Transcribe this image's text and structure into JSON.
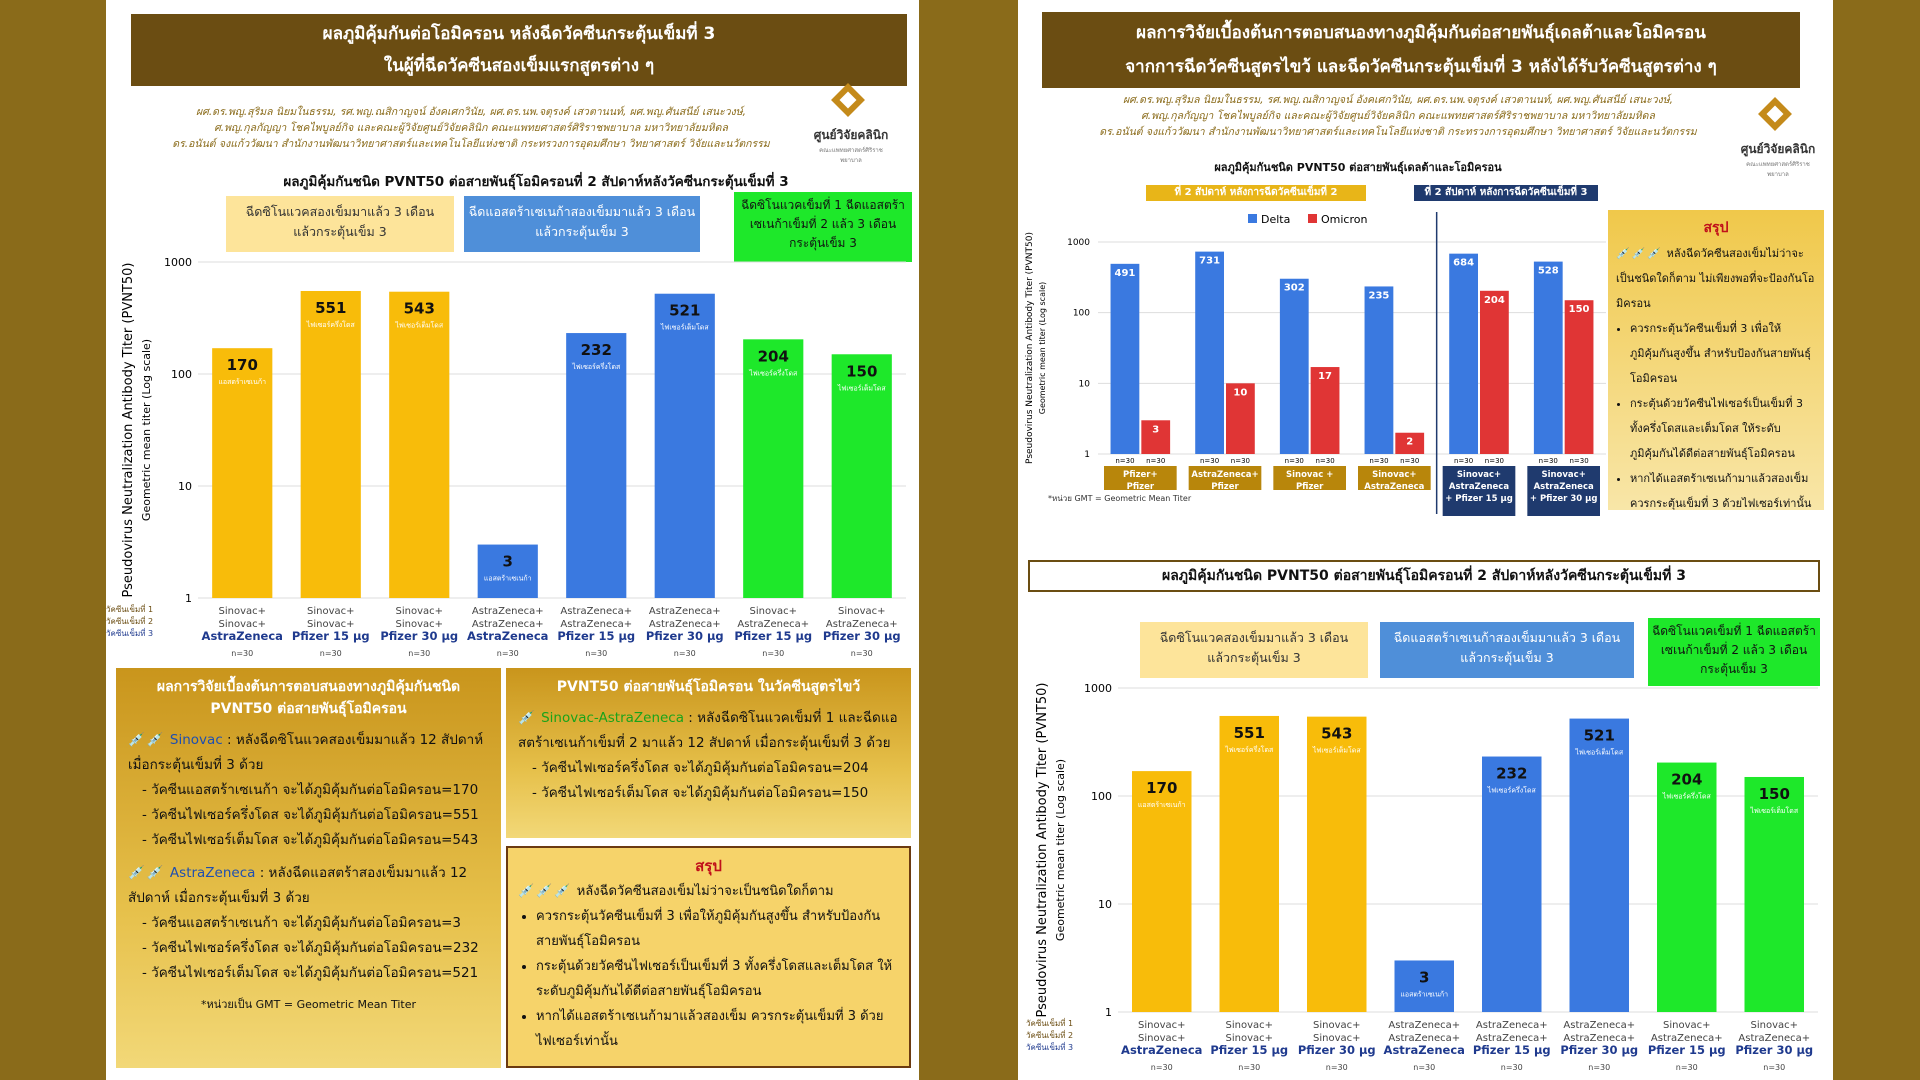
{
  "left": {
    "header": [
      "ผลภูมิคุ้มกันต่อโอมิครอน หลังฉีดวัคซีนกระตุ้นเข็มที่ 3",
      "ในผู้ที่ฉีดวัคซีนสองเข็มแรกสูตรต่าง ๆ"
    ],
    "authors": [
      "ผศ.ดร.พญ.สุริมล นิยมในธรรม, รศ.พญ.ณสิกาญจน์ อังคเศกวินัย, ผศ.ดร.นพ.จตุรงค์ เสวตานนท์, ผศ.พญ.ศันสนีย์ เสนะวงษ์,",
      "ศ.พญ.กุลกัญญา โชคไพบูลย์กิจ และคณะผู้วิจัยศูนย์วิจัยคลินิก คณะแพทยศาสตร์ศิริราชพยาบาล มหาวิทยาลัยมหิดล",
      "ดร.อนันต์ จงแก้ววัฒนา สำนักงานพัฒนาวิทยาศาสตร์และเทคโนโลยีแห่งชาติ กระทรวงการอุดมศึกษา วิทยาศาสตร์ วิจัยและนวัตกรรม"
    ],
    "logo": {
      "name": "ศูนย์วิจัยคลินิก",
      "sub": "คณะแพทยศาสตร์ศิริราชพยาบาล"
    },
    "summary1": {
      "title": "ผลการวิจัยเบื้องต้นการตอบสนองทางภูมิคุ้มกันชนิด PVNT50 ต่อสายพันธุ์โอมิครอน",
      "sinovac_name": "Sinovac",
      "sinovac_text": ": หลังฉีดซิโนแวคสองเข็มมาแล้ว 12 สัปดาห์ เมื่อกระตุ้นเข็มที่ 3 ด้วย",
      "sinovac_items": [
        "วัคซีนแอสตร้าเซเนก้า จะได้ภูมิคุ้มกันต่อโอมิครอน=170",
        "วัคซีนไฟเซอร์ครึ่งโดส จะได้ภูมิคุ้มกันต่อโอมิครอน=551",
        "วัคซีนไฟเซอร์เต็มโดส จะได้ภูมิคุ้มกันต่อโอมิครอน=543"
      ],
      "az_name": "AstraZeneca",
      "az_text": ": หลังฉีดแอสตร้าสองเข็มมาแล้ว 12 สัปดาห์ เมื่อกระตุ้นเข็มที่ 3 ด้วย",
      "az_items": [
        "วัคซีนแอสตร้าเซเนก้า จะได้ภูมิคุ้มกันต่อโอมิครอน=3",
        "วัคซีนไฟเซอร์ครึ่งโดส จะได้ภูมิคุ้มกันต่อโอมิครอน=232",
        "วัคซีนไฟเซอร์เต็มโดส จะได้ภูมิคุ้มกันต่อโอมิครอน=521"
      ],
      "unit_note": "*หน่วยเป็น GMT = Geometric Mean Titer"
    },
    "summary2": {
      "title": "PVNT50 ต่อสายพันธุ์โอมิครอน ในวัคซีนสูตรไขว้",
      "mix_name": "Sinovac-AstraZeneca",
      "mix_text": ": หลังฉีดซิโนแวคเข็มที่ 1 และฉีดแอสตร้าเซเนก้าเข็มที่ 2 มาแล้ว 12 สัปดาห์ เมื่อกระตุ้นเข็มที่ 3 ด้วย",
      "mix_items": [
        "วัคซีนไฟเซอร์ครึ่งโดส จะได้ภูมิคุ้มกันต่อโอมิครอน=204",
        "วัคซีนไฟเซอร์เต็มโดส จะได้ภูมิคุ้มกันต่อโอมิครอน=150"
      ]
    },
    "conclusion": {
      "title": "สรุป",
      "intro": "หลังฉีดวัคซีนสองเข็มไม่ว่าจะเป็นชนิดใดก็ตาม",
      "items": [
        "ควรกระตุ้นวัคซีนเข็มที่ 3 เพื่อให้ภูมิคุ้มกันสูงขึ้น สำหรับป้องกันสายพันธุ์โอมิครอน",
        "กระตุ้นด้วยวัคซีนไฟเซอร์เป็นเข็มที่ 3 ทั้งครึ่งโดสและเต็มโดส ให้ระดับภูมิคุ้มกันได้ดีต่อสายพันธุ์โอมิครอน",
        "หากได้แอสตร้าเซเนก้ามาแล้วสองเข็ม ควรกระตุ้นเข็มที่ 3 ด้วยไฟเซอร์เท่านั้น"
      ]
    }
  },
  "right": {
    "header": [
      "ผลการวิจัยเบื้องต้นการตอบสนองทางภูมิคุ้มกันต่อสายพันธุ์เดลต้าและโอมิครอน",
      "จากการฉีดวัคซีนสูตรไขว้ และฉีดวัคซีนกระตุ้นเข็มที่ 3 หลังได้รับวัคซีนสูตรต่าง ๆ"
    ],
    "authors": [
      "ผศ.ดร.พญ.สุริมล นิยมในธรรม, รศ.พญ.ณสิกาญจน์ อังคเศกวินัย, ผศ.ดร.นพ.จตุรงค์ เสวตานนท์, ผศ.พญ.ศันสนีย์ เสนะวงษ์,",
      "ศ.พญ.กุลกัญญา โชคไพบูลย์กิจ และคณะผู้วิจัยศูนย์วิจัยคลินิก คณะแพทยศาสตร์ศิริราชพยาบาล มหาวิทยาลัยมหิดล",
      "ดร.อนันต์ จงแก้ววัฒนา สำนักงานพัฒนาวิทยาศาสตร์และเทคโนโลยีแห่งชาติ กระทรวงการอุดมศึกษา วิทยาศาสตร์ วิจัยและนวัตกรรม"
    ],
    "tag_left": "ที่ 2 สัปดาห์ หลังการฉีดวัคซีนเข็มที่ 2",
    "tag_right": "ที่ 2 สัปดาห์ หลังการฉีดวัคซีนเข็มที่ 3",
    "note": "*หน่วย GMT = Geometric Mean Titer",
    "summary": {
      "title": "สรุป",
      "intro": "หลังฉีดวัคซีนสองเข็มไม่ว่าจะเป็นชนิดใดก็ตาม ไม่เพียงพอที่จะป้องกันโอมิครอน",
      "items": [
        "ควรกระตุ้นวัคซีนเข็มที่ 3 เพื่อให้ภูมิคุ้มกันสูงขึ้น สำหรับป้องกันสายพันธุ์โอมิครอน",
        "กระตุ้นด้วยวัคซีนไฟเซอร์เป็นเข็มที่ 3 ทั้งครึ่งโดสและเต็มโดส ให้ระดับภูมิคุ้มกันได้ดีต่อสายพันธุ์โอมิครอน",
        "หากได้แอสตร้าเซเนก้ามาแล้วสองเข็ม ควรกระตุ้นเข็มที่ 3 ด้วยไฟเซอร์เท่านั้น"
      ]
    },
    "section2_title": "ผลภูมิคุ้มกันชนิด PVNT50 ต่อสายพันธุ์โอมิครอนที่ 2 สัปดาห์หลังวัคซีนกระตุ้นเข็มที่ 3"
  },
  "groups": [
    "ฉีดซิโนแวคสองเข็มมาแล้ว 3 เดือน แล้วกระตุ้นเข็ม 3",
    "ฉีดแอสตร้าเซเนก้าสองเข็มมาแล้ว 3 เดือน แล้วกระตุ้นเข็ม 3",
    "ฉีดซิโนแวคเข็มที่ 1 ฉีดแอสตร้าเซเนก้าเข็มที่ 2 แล้ว 3 เดือน กระตุ้นเข็ม 3"
  ],
  "colors": {
    "yellow": "#f8bc0a",
    "blue": "#3a79e0",
    "green": "#1ee82a",
    "red": "#e03535",
    "brown": "#6b4d12"
  },
  "chart_data": [
    {
      "type": "bar",
      "title": "ผลภูมิคุ้มกันชนิด PVNT50 ต่อสายพันธุ์โอมิครอนที่ 2 สัปดาห์หลังวัคซีนกระตุ้นเข็มที่ 3",
      "ylabel": "Pseudovirus Neutralization Antibody Titer (PVNT50)",
      "ylabel2": "Geometric mean titer (Log scale)",
      "yscale": "log",
      "ylim": [
        1,
        1000
      ],
      "yticks": [
        "1",
        "10",
        "100",
        "1000"
      ],
      "row_labels": [
        "วัคซีนเข็มที่ 1",
        "วัคซีนเข็มที่ 2",
        "วัคซีนเข็มที่ 3"
      ],
      "categories": [
        [
          "Sinovac+",
          "Sinovac+",
          "AstraZeneca"
        ],
        [
          "Sinovac+",
          "Sinovac+",
          "Pfizer 15 µg"
        ],
        [
          "Sinovac+",
          "Sinovac+",
          "Pfizer 30 µg"
        ],
        [
          "AstraZeneca+",
          "AstraZeneca+",
          "AstraZeneca"
        ],
        [
          "AstraZeneca+",
          "AstraZeneca+",
          "Pfizer 15 µg"
        ],
        [
          "AstraZeneca+",
          "AstraZeneca+",
          "Pfizer 30 µg"
        ],
        [
          "Sinovac+",
          "AstraZeneca+",
          "Pfizer 15 µg"
        ],
        [
          "Sinovac+",
          "AstraZeneca+",
          "Pfizer 30 µg"
        ]
      ],
      "values": [
        170,
        551,
        543,
        3,
        232,
        521,
        204,
        150
      ],
      "bar_labels": [
        "แอสตร้าเซเนก้า",
        "ไฟเซอร์ครึ่งโดส",
        "ไฟเซอร์เต็มโดส",
        "แอสตร้าเซเนก้า",
        "ไฟเซอร์ครึ่งโดส",
        "ไฟเซอร์เต็มโดส",
        "ไฟเซอร์ครึ่งโดส",
        "ไฟเซอร์เต็มโดส"
      ],
      "colors": [
        "yellow",
        "yellow",
        "yellow",
        "blue",
        "blue",
        "blue",
        "green",
        "green"
      ],
      "n": [
        "n=30",
        "n=30",
        "n=30",
        "n=30",
        "n=30",
        "n=30",
        "n=30",
        "n=30"
      ]
    },
    {
      "type": "bar",
      "title": "ผลภูมิคุ้มกันชนิด PVNT50 ต่อสายพันธุ์เดลต้าและโอมิครอน",
      "ylabel": "Pseudovirus Neutralization Antibody Titer (PVNT50)",
      "ylabel2": "Geometric mean titer (Log scale)",
      "yscale": "log",
      "ylim": [
        1,
        1000
      ],
      "yticks": [
        "1",
        "10",
        "100",
        "1000"
      ],
      "legend": "top",
      "categories": [
        [
          "Pfizer+",
          "Pfizer"
        ],
        [
          "AstraZeneca+",
          "Pfizer"
        ],
        [
          "Sinovac +",
          "Pfizer"
        ],
        [
          "Sinovac+",
          "AstraZeneca"
        ],
        [
          "Sinovac+",
          "AstraZeneca",
          "+ Pfizer 15 µg"
        ],
        [
          "Sinovac+",
          "AstraZeneca",
          "+ Pfizer 30 µg"
        ]
      ],
      "series": [
        {
          "name": "Delta",
          "values": [
            491,
            731,
            302,
            235,
            684,
            528
          ]
        },
        {
          "name": "Omicron",
          "values": [
            3,
            10,
            17,
            2,
            204,
            150
          ]
        }
      ],
      "n": [
        "n=30",
        "n=30",
        "n=30",
        "n=30",
        "n=30",
        "n=30"
      ]
    }
  ]
}
